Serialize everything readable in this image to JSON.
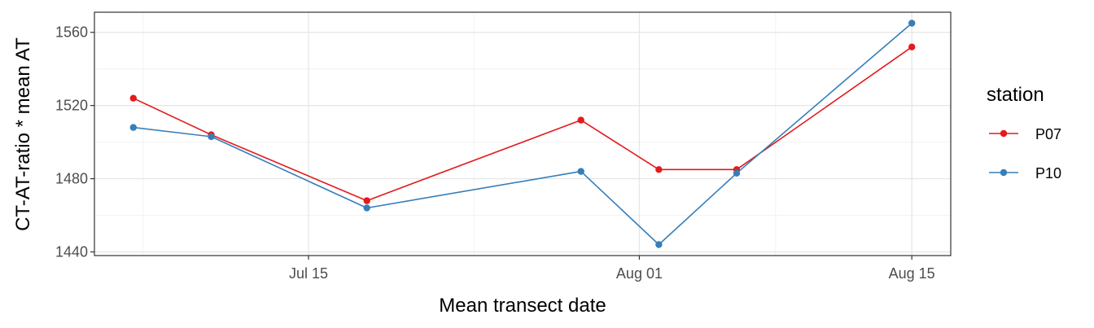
{
  "chart_data": {
    "type": "line",
    "xlabel": "Mean transect date",
    "ylabel": "CT-AT-ratio * mean AT",
    "x_ticks": [
      {
        "date": "2019-07-15",
        "label": "Jul 15"
      },
      {
        "date": "2019-08-01",
        "label": "Aug 01"
      },
      {
        "date": "2019-08-15",
        "label": "Aug 15"
      }
    ],
    "xlim": [
      "2019-07-04",
      "2019-08-17"
    ],
    "y_ticks": [
      1440,
      1480,
      1520,
      1560
    ],
    "ylim": [
      1438,
      1571
    ],
    "grid": true,
    "legend": {
      "title": "station",
      "position": "right"
    },
    "series": [
      {
        "name": "P07",
        "color": "#e41a1c",
        "points": [
          {
            "x": "2019-07-06",
            "y": 1524
          },
          {
            "x": "2019-07-10",
            "y": 1504
          },
          {
            "x": "2019-07-18",
            "y": 1468
          },
          {
            "x": "2019-07-29",
            "y": 1512
          },
          {
            "x": "2019-08-02",
            "y": 1485
          },
          {
            "x": "2019-08-06",
            "y": 1485
          },
          {
            "x": "2019-08-15",
            "y": 1552
          }
        ]
      },
      {
        "name": "P10",
        "color": "#377eb8",
        "points": [
          {
            "x": "2019-07-06",
            "y": 1508
          },
          {
            "x": "2019-07-10",
            "y": 1503
          },
          {
            "x": "2019-07-18",
            "y": 1464
          },
          {
            "x": "2019-07-29",
            "y": 1484
          },
          {
            "x": "2019-08-02",
            "y": 1444
          },
          {
            "x": "2019-08-06",
            "y": 1483
          },
          {
            "x": "2019-08-15",
            "y": 1565
          }
        ]
      }
    ]
  }
}
